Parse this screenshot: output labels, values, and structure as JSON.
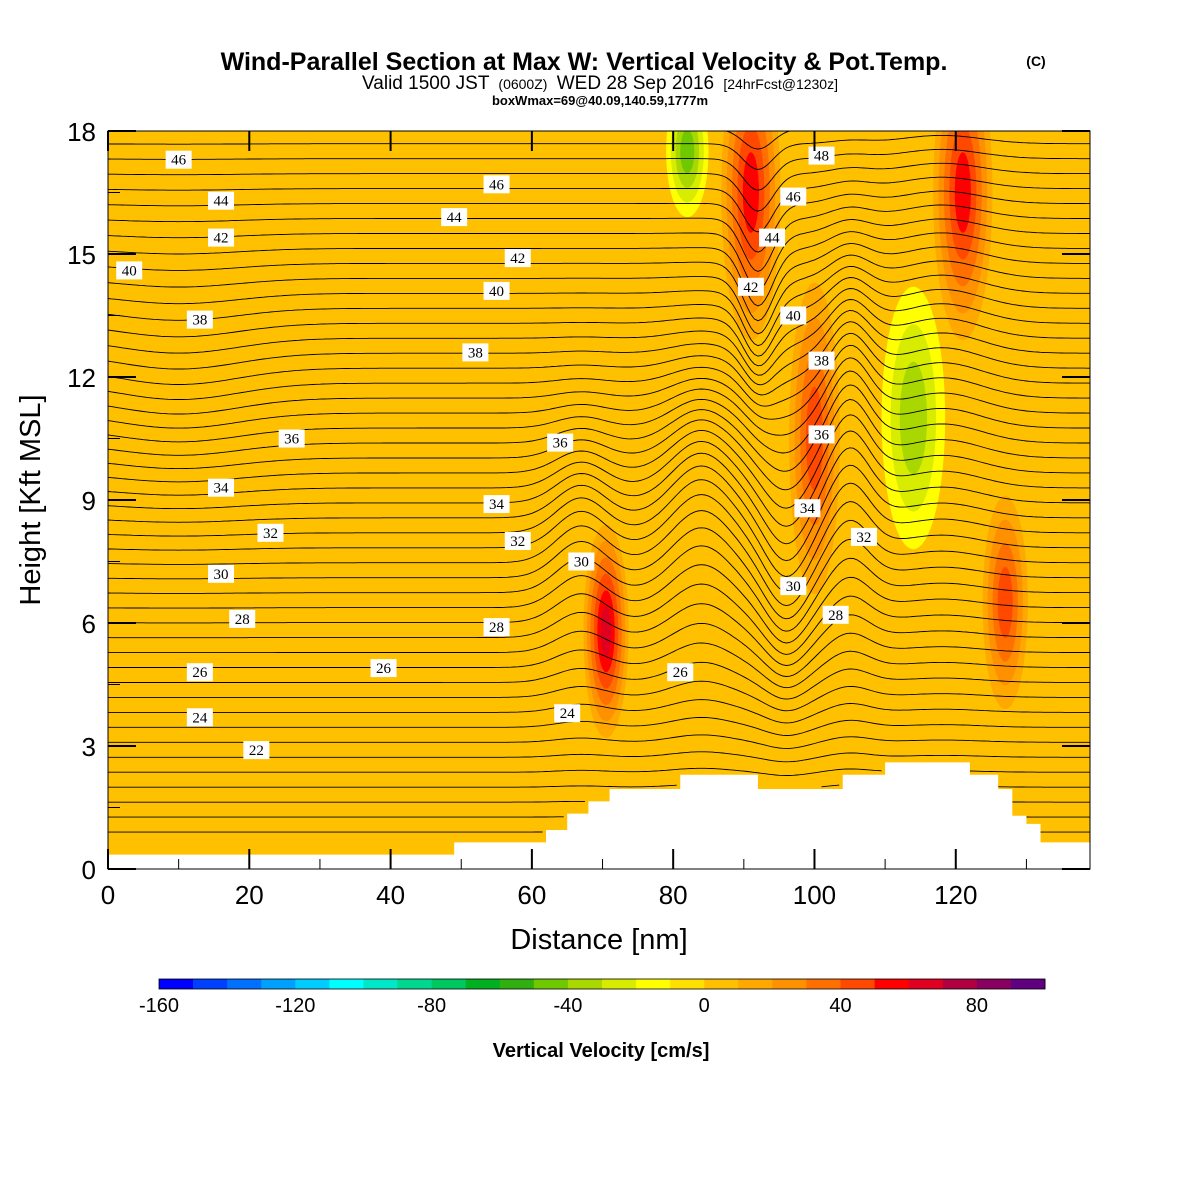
{
  "header": {
    "title": "Wind-Parallel Section at Max W: Vertical Velocity & Pot.Temp.",
    "copyright": "(C)",
    "valid_prefix": "Valid 1500 JST",
    "valid_utc": "(0600Z)",
    "valid_date": "WED 28 Sep 2016",
    "forecast": "[24hrFcst@1230z]",
    "box_info": "boxWmax=69@40.09,140.59,1777m"
  },
  "colors": {
    "background_field": "#ffc000",
    "terrain": "#ffffff",
    "isentrope": "#000000"
  },
  "chart_data": {
    "type": "contour",
    "xlabel": "Distance [nm]",
    "ylabel": "Height [Kft MSL]",
    "xlim": [
      0,
      139
    ],
    "ylim": [
      0,
      18
    ],
    "x_ticks": [
      "0",
      "20",
      "40",
      "60",
      "80",
      "100",
      "120"
    ],
    "y_ticks": [
      "0",
      "3",
      "6",
      "9",
      "12",
      "15",
      "18"
    ],
    "colorbar": {
      "label": "Vertical Velocity [cm/s]",
      "min": -160,
      "max": 100,
      "step": 10,
      "tick_labels": [
        "-160",
        "-120",
        "-80",
        "-40",
        "0",
        "40",
        "80"
      ],
      "colors": [
        "#0000ff",
        "#0040ff",
        "#0070ff",
        "#00a0ff",
        "#00ccff",
        "#00ffff",
        "#00e8c8",
        "#00d890",
        "#00c860",
        "#00b020",
        "#30b010",
        "#70c800",
        "#a8d800",
        "#d8ec00",
        "#ffff00",
        "#ffe000",
        "#ffc000",
        "#ffa800",
        "#ff9000",
        "#ff7000",
        "#ff4800",
        "#ff0000",
        "#e00020",
        "#b00040",
        "#880060",
        "#600080"
      ]
    },
    "terrain_kft": [
      [
        0,
        0.35
      ],
      [
        48,
        0.35
      ],
      [
        49,
        0.65
      ],
      [
        61,
        0.65
      ],
      [
        62,
        0.95
      ],
      [
        65,
        1.35
      ],
      [
        68,
        1.65
      ],
      [
        71,
        1.95
      ],
      [
        81,
        2.3
      ],
      [
        91,
        2.3
      ],
      [
        92,
        1.95
      ],
      [
        104,
        2.3
      ],
      [
        110,
        2.6
      ],
      [
        120,
        2.6
      ],
      [
        122,
        2.3
      ],
      [
        126,
        1.95
      ],
      [
        128,
        1.3
      ],
      [
        130,
        1.1
      ],
      [
        132,
        0.65
      ],
      [
        139,
        0.65
      ]
    ],
    "velocity_features": [
      {
        "x": 70.5,
        "z": 5.8,
        "peak": 69
      },
      {
        "x": 91,
        "z": 16.5,
        "peak": 55
      },
      {
        "x": 121,
        "z": 16.5,
        "peak": 55
      },
      {
        "x": 100,
        "z": 10.5,
        "peak": 45
      },
      {
        "x": 127,
        "z": 6.5,
        "peak": 40
      },
      {
        "x": 114,
        "z": 11,
        "peak": -35
      },
      {
        "x": 82,
        "z": 17.5,
        "peak": -40
      }
    ],
    "isentropes_c": [
      "22",
      "24",
      "26",
      "28",
      "30",
      "32",
      "34",
      "36",
      "38",
      "40",
      "42",
      "44",
      "46",
      "48"
    ],
    "isentrope_labels": [
      {
        "text": "46",
        "x": 10,
        "z": 17.3
      },
      {
        "text": "46",
        "x": 55,
        "z": 16.7
      },
      {
        "text": "48",
        "x": 101,
        "z": 17.4
      },
      {
        "text": "44",
        "x": 16,
        "z": 16.3
      },
      {
        "text": "44",
        "x": 49,
        "z": 15.9
      },
      {
        "text": "46",
        "x": 97,
        "z": 16.4
      },
      {
        "text": "42",
        "x": 16,
        "z": 15.4
      },
      {
        "text": "42",
        "x": 58,
        "z": 14.9
      },
      {
        "text": "44",
        "x": 94,
        "z": 15.4
      },
      {
        "text": "40",
        "x": 3,
        "z": 14.6
      },
      {
        "text": "40",
        "x": 55,
        "z": 14.1
      },
      {
        "text": "42",
        "x": 91,
        "z": 14.2
      },
      {
        "text": "38",
        "x": 13,
        "z": 13.4
      },
      {
        "text": "38",
        "x": 52,
        "z": 12.6
      },
      {
        "text": "40",
        "x": 97,
        "z": 13.5
      },
      {
        "text": "38",
        "x": 101,
        "z": 12.4
      },
      {
        "text": "36",
        "x": 26,
        "z": 10.5
      },
      {
        "text": "36",
        "x": 64,
        "z": 10.4
      },
      {
        "text": "36",
        "x": 101,
        "z": 10.6
      },
      {
        "text": "34",
        "x": 16,
        "z": 9.3
      },
      {
        "text": "34",
        "x": 55,
        "z": 8.9
      },
      {
        "text": "34",
        "x": 99,
        "z": 8.8
      },
      {
        "text": "32",
        "x": 23,
        "z": 8.2
      },
      {
        "text": "32",
        "x": 58,
        "z": 8.0
      },
      {
        "text": "32",
        "x": 107,
        "z": 8.1
      },
      {
        "text": "30",
        "x": 16,
        "z": 7.2
      },
      {
        "text": "30",
        "x": 67,
        "z": 7.5
      },
      {
        "text": "30",
        "x": 97,
        "z": 6.9
      },
      {
        "text": "28",
        "x": 19,
        "z": 6.1
      },
      {
        "text": "28",
        "x": 55,
        "z": 5.9
      },
      {
        "text": "28",
        "x": 103,
        "z": 6.2
      },
      {
        "text": "26",
        "x": 13,
        "z": 4.8
      },
      {
        "text": "26",
        "x": 39,
        "z": 4.9
      },
      {
        "text": "26",
        "x": 81,
        "z": 4.8
      },
      {
        "text": "24",
        "x": 13,
        "z": 3.7
      },
      {
        "text": "24",
        "x": 65,
        "z": 3.8
      },
      {
        "text": "22",
        "x": 21,
        "z": 2.9
      }
    ]
  }
}
